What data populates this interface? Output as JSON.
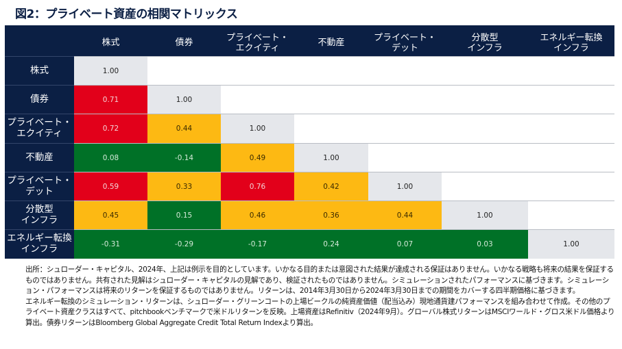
{
  "title": "図2：プライベート資産の相関マトリックス",
  "chart_data": {
    "type": "heatmap",
    "title": "図2：プライベート資産の相関マトリックス",
    "columns": [
      "株式",
      "債券",
      "プライベート・\nエクイティ",
      "不動産",
      "プライベート・\nデット",
      "分散型\nインフラ",
      "エネルギー転換\nインフラ"
    ],
    "rows": [
      "株式",
      "債券",
      "プライベート・\nエクイティ",
      "不動産",
      "プライベート・\nデット",
      "分散型\nインフラ",
      "エネルギー転換\nインフラ"
    ],
    "values": [
      [
        "1.00"
      ],
      [
        "0.71",
        "1.00"
      ],
      [
        "0.72",
        "0.44",
        "1.00"
      ],
      [
        "0.08",
        "-0.14",
        "0.49",
        "1.00"
      ],
      [
        "0.59",
        "0.33",
        "0.76",
        "0.42",
        "1.00"
      ],
      [
        "0.45",
        "0.15",
        "0.46",
        "0.36",
        "0.44",
        "1.00"
      ],
      [
        "-0.31",
        "-0.29",
        "-0.17",
        "0.24",
        "0.07",
        "0.03",
        "1.00"
      ]
    ],
    "colors": {
      "high": "#e2001a",
      "mid": "#fdb913",
      "low": "#007127",
      "diagonal": "#e5e7eb",
      "header": "#0b1f44"
    },
    "color_thresholds": {
      "high_min": 0.5,
      "mid_min": 0.3
    }
  },
  "notes": [
    "出所：シュローダー・キャピタル、2024年、上記は例示を目的としています。いかなる目的または意図された結果が達成される保証はありません。いかなる戦略も将来の結果を保証するものではありません。共有された見解はシュローダー・キャピタルの見解であり、検証されたものではありません。シミュレーションされたパフォーマンスに基づきます。シミュレーション・パフォーマンスは将来のリターンを保証するものではありません。リターンは、2014年3月30日から2024年3月30日までの期間をカバーする四半期価格に基づきます。",
    "エネルギー転換のシミュレーション・リターンは、シュローダー・グリーンコートの上場ビークルの純資産価値（配当込み）現地通貨建パフォーマンスを組み合わせて作成。その他のプライベート資産クラスはすべて、pitchbookベンチマークで米ドルリターンを反映。上場資産はRefinitiv（2024年9月）。グローバル株式リターンはMSCIワールド・グロス米ドル価格より算出。債券リターンはBloomberg Global Aggregate Credit Total Return Indexより算出。"
  ]
}
